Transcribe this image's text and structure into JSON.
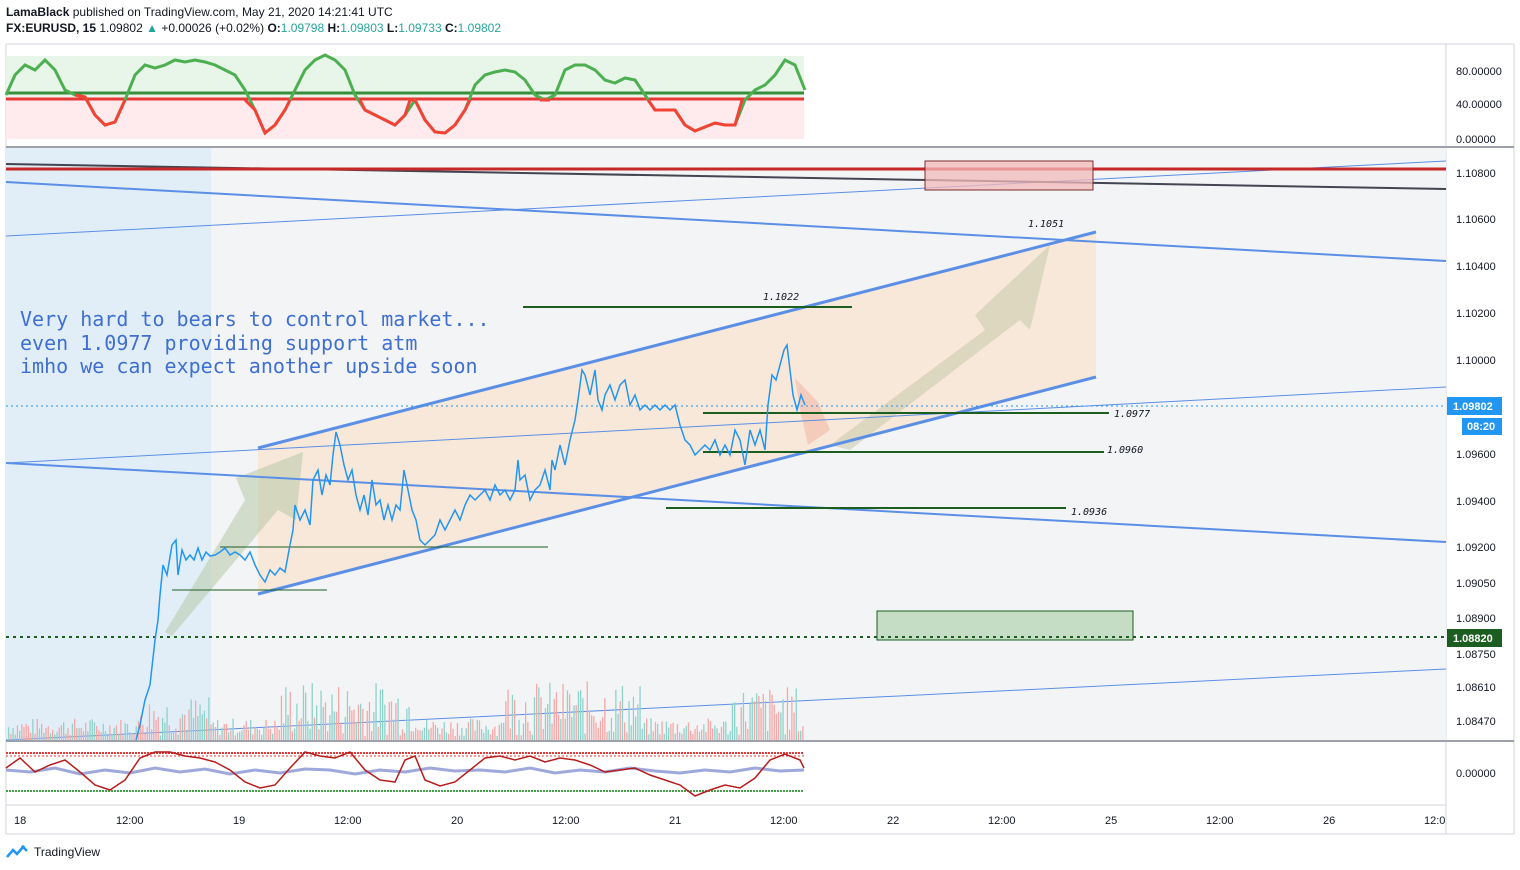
{
  "header": {
    "author": "LamaBlack",
    "published_text": "published on TradingView.com, May 21, 2020 14:21:41 UTC",
    "symbol": "FX:EURUSD, 15",
    "last": "1.09802",
    "change": "+0.00026 (+0.02%)",
    "o_label": "O:",
    "o_value": "1.09798",
    "h_label": "H:",
    "h_value": "1.09803",
    "l_label": "L:",
    "l_value": "1.09733",
    "c_label": "C:",
    "c_value": "1.09802"
  },
  "annotation": {
    "lines": [
      "Very hard to bears to control market...",
      "even 1.0977 providing support atm",
      "imho we can expect another upside soon"
    ]
  },
  "level_labels": {
    "l1051": "1.1051",
    "l1022": "1.1022",
    "l0977": "1.0977",
    "l0960": "1.0960",
    "l0936": "1.0936"
  },
  "price_badges": {
    "current": "1.09802",
    "countdown": "08:20",
    "green_level": "1.08820"
  },
  "footer": {
    "brand": "TradingView"
  },
  "colors": {
    "up": "#26a69a",
    "down": "#ef5350",
    "price_line": "#2196f3",
    "trendline": "#5b8fe6",
    "resistance": "#c62828",
    "level": "#1b5e20",
    "green_badge": "#1b5e20",
    "blue_badge": "#2196f3"
  },
  "chart_data": [
    {
      "type": "line",
      "title": "FX:EURUSD, 15",
      "y_axis_ticks": [
        "1.10800",
        "1.10600",
        "1.10400",
        "1.10200",
        "1.10000",
        "1.09600",
        "1.09400",
        "1.09200",
        "1.09050",
        "1.08900",
        "1.08750",
        "1.08610",
        "1.08470"
      ],
      "x_axis_ticks": [
        "18",
        "12:00",
        "19",
        "12:00",
        "20",
        "12:00",
        "21",
        "12:00",
        "22",
        "12:00",
        "25",
        "12:00",
        "26",
        "12:0"
      ],
      "x": [
        "18 12:00",
        "18 14:00",
        "18 15:00",
        "18 16:00",
        "18 18:00",
        "19 00:00",
        "19 04:00",
        "19 08:00",
        "19 12:00",
        "19 16:00",
        "19 20:00",
        "20 00:00",
        "20 04:00",
        "20 08:00",
        "20 12:00",
        "20 14:00",
        "20 18:00",
        "21 00:00",
        "21 04:00",
        "21 08:00",
        "21 10:00",
        "21 12:00",
        "21 14:00"
      ],
      "series": [
        {
          "values": [
            1.0848,
            1.089,
            1.092,
            1.0914,
            1.0917,
            1.0905,
            1.0945,
            1.097,
            1.0935,
            1.092,
            1.0938,
            1.0942,
            1.0945,
            1.0995,
            1.0985,
            1.098,
            1.0975,
            1.0963,
            1.0962,
            1.0965,
            1.1003,
            1.098,
            1.098
          ]
        }
      ],
      "levels": [
        1.1051,
        1.1022,
        1.0977,
        1.096,
        1.0936,
        1.0882
      ],
      "current_price": 1.09802
    },
    {
      "type": "line",
      "title": "",
      "y_axis_ticks": [
        "80.00000",
        "40.00000",
        "0.00000"
      ],
      "series": [
        {
          "values": [
            55,
            82,
            85,
            40,
            15,
            70,
            85,
            88,
            82,
            45,
            25,
            60,
            80,
            30,
            55,
            80,
            75,
            85,
            55,
            30,
            10,
            25,
            55,
            85,
            75
          ]
        }
      ],
      "ylim": [
        0,
        100
      ]
    },
    {
      "type": "line",
      "title": "",
      "y_axis_ticks": [
        "0.00000"
      ],
      "series": [
        {
          "values": [
            0.2,
            -0.6,
            0.4,
            -0.7,
            0.7,
            0.5,
            -0.3,
            0.6,
            0.4,
            -0.6,
            0.5,
            0.3,
            -0.5,
            0.7,
            0.2,
            0.4,
            -0.3,
            -0.8,
            -0.4,
            0.3,
            0.6,
            -0.2,
            0.7,
            0.1
          ]
        }
      ],
      "ylim": [
        -1,
        1
      ]
    }
  ]
}
